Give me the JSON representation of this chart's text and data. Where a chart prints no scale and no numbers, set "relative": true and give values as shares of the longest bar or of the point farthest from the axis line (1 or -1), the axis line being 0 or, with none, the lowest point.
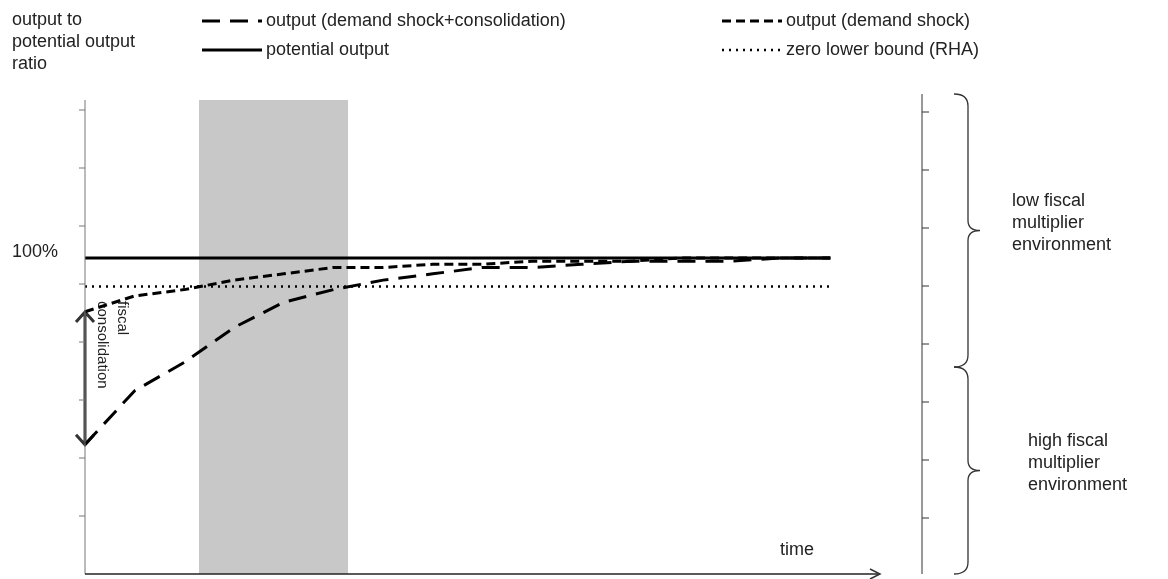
{
  "chart_data": {
    "type": "line",
    "relative": true,
    "xlabel": "time",
    "legend": "top",
    "categories": [
      null,
      null,
      null,
      null,
      null,
      null,
      null,
      null,
      null,
      null,
      null,
      null,
      null,
      null,
      null,
      null,
      null
    ],
    "series": [
      {
        "name": "output (demand shock+consolidation)",
        "color": "#000000",
        "line_style": "dashed",
        "values": [
          0.41,
          0.58,
          0.67,
          0.78,
          0.86,
          0.9,
          0.93,
          0.95,
          0.97,
          0.97,
          0.98,
          0.99,
          0.99,
          0.99,
          1,
          1,
          null
        ]
      },
      {
        "name": "output (demand shock)",
        "color": "#000000",
        "line_style": "dashed",
        "values": [
          0.83,
          0.88,
          0.9,
          0.93,
          0.95,
          0.97,
          0.97,
          0.98,
          0.98,
          0.99,
          0.99,
          0.99,
          1,
          1,
          1,
          1,
          null
        ]
      },
      {
        "name": "potential output",
        "color": "#000000",
        "line_style": "solid",
        "values": [
          1,
          1,
          1,
          1,
          1,
          1,
          1,
          1,
          1,
          1,
          1,
          1,
          1,
          1,
          1,
          1,
          null
        ]
      },
      {
        "name": "zero lower bound (RHA)",
        "color": "#000000",
        "line_style": "dotted",
        "values": [
          0.91,
          0.91,
          0.91,
          0.91,
          0.91,
          0.91,
          0.91,
          0.91,
          0.91,
          0.91,
          0.91,
          0.91,
          0.91,
          0.91,
          0.91,
          0.91,
          null
        ]
      }
    ],
    "annotations": [
      "output to potential output ratio",
      "100%",
      "fiscal consolidation",
      "low fiscal multiplier environment",
      "high fiscal multiplier environment"
    ]
  }
}
